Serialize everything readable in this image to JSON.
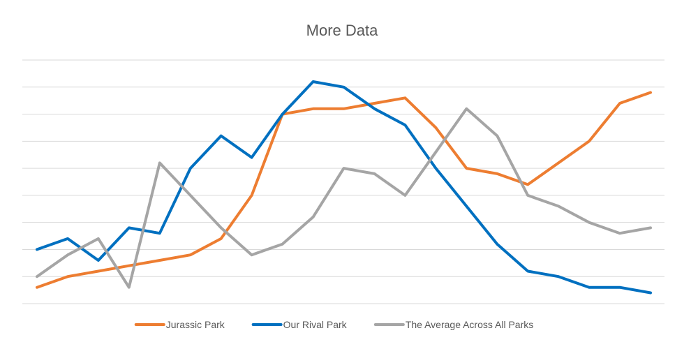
{
  "chart_data": {
    "type": "line",
    "title": "More Data",
    "xlabel": "",
    "ylabel": "",
    "ylim": [
      0,
      9
    ],
    "y_gridlines": [
      0,
      1,
      2,
      3,
      4,
      5,
      6,
      7,
      8,
      9
    ],
    "y_tick_labels_visible": false,
    "x_tick_labels_visible": false,
    "grid": true,
    "legend_position": "bottom",
    "x": [
      1,
      2,
      3,
      4,
      5,
      6,
      7,
      8,
      9,
      10,
      11,
      12,
      13,
      14,
      15,
      16,
      17,
      18,
      19,
      20,
      21
    ],
    "series": [
      {
        "name": "Jurassic Park",
        "color": "#ed7d31",
        "values": [
          0.6,
          1.0,
          1.2,
          1.4,
          1.6,
          1.8,
          2.4,
          4.0,
          7.0,
          7.2,
          7.2,
          7.4,
          7.6,
          6.5,
          5.0,
          4.8,
          4.4,
          5.2,
          6.0,
          7.4,
          7.8
        ]
      },
      {
        "name": "Our Rival Park",
        "color": "#0070c0",
        "values": [
          2.0,
          2.4,
          1.6,
          2.8,
          2.6,
          5.0,
          6.2,
          5.4,
          7.0,
          8.2,
          8.0,
          7.2,
          6.6,
          5.0,
          3.6,
          2.2,
          1.2,
          1.0,
          0.6,
          0.6,
          0.4
        ]
      },
      {
        "name": "The Average Across All Parks",
        "color": "#a5a5a5",
        "values": [
          1.0,
          1.8,
          2.4,
          0.6,
          5.2,
          4.0,
          2.8,
          1.8,
          2.2,
          3.2,
          5.0,
          4.8,
          4.0,
          5.6,
          7.2,
          6.2,
          4.0,
          3.6,
          3.0,
          2.6,
          2.8
        ]
      }
    ]
  }
}
